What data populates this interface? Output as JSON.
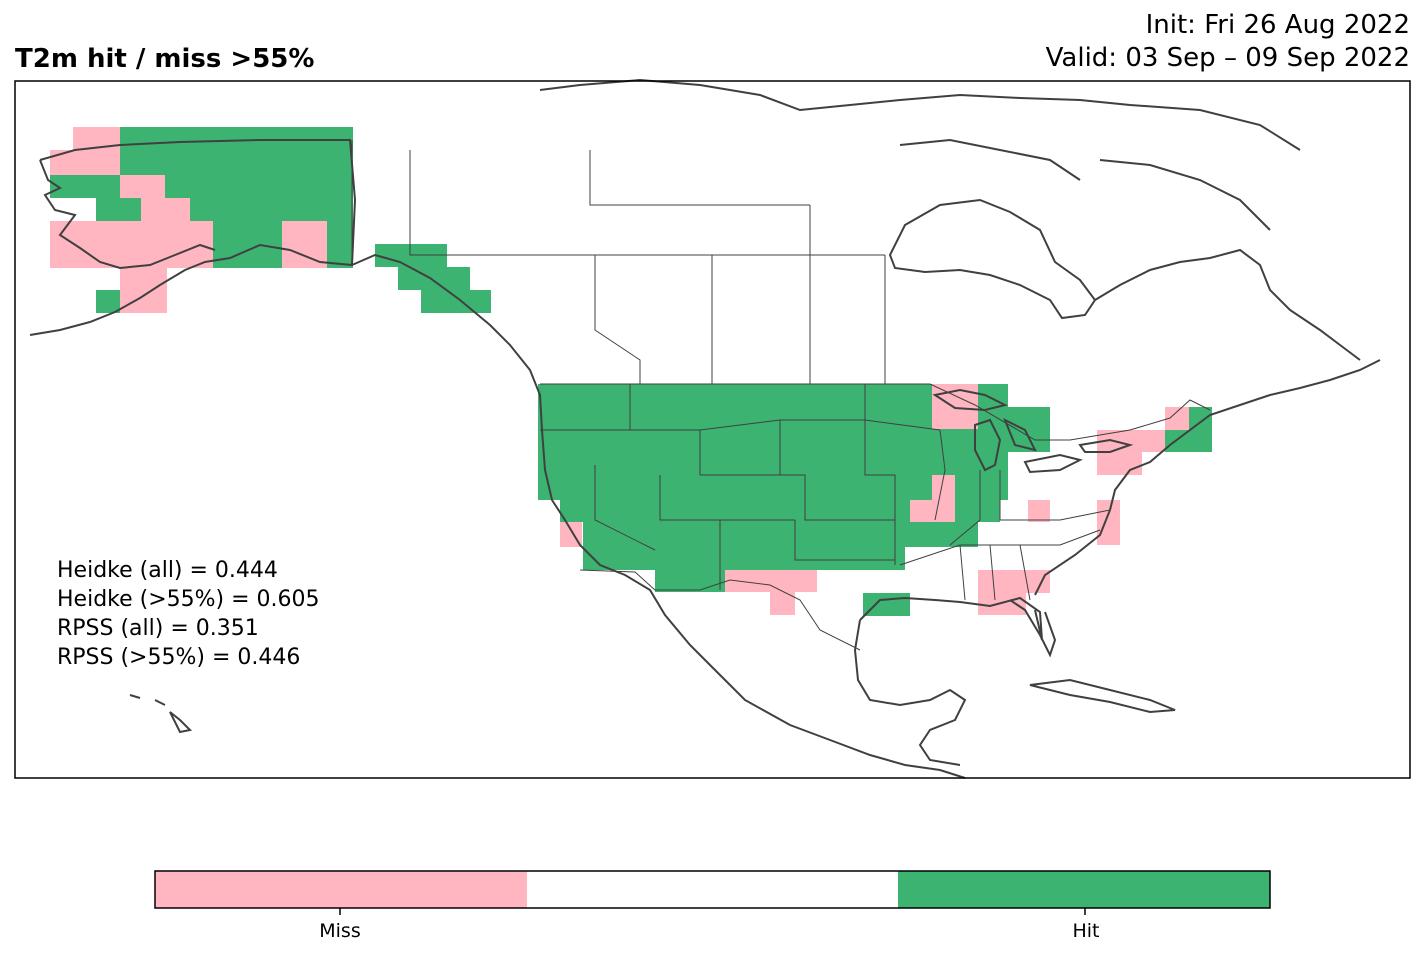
{
  "header": {
    "title": "T2m hit / miss  >55%",
    "init": "Init: Fri 26 Aug 2022",
    "valid": "Valid: 03 Sep – 09 Sep 2022"
  },
  "stats": [
    "Heidke (all) = 0.444",
    "Heidke (>55%) = 0.605",
    "RPSS (all) = 0.351",
    "RPSS (>55%) = 0.446"
  ],
  "legend": {
    "categories": [
      {
        "label": "Miss",
        "color": "#ffb6c1"
      },
      {
        "label": "",
        "color": "#ffffff"
      },
      {
        "label": "Hit",
        "color": "#3cb371"
      }
    ]
  },
  "colors": {
    "hit": "#3cb371",
    "miss": "#ffb6c1",
    "coast": "#404040"
  }
}
